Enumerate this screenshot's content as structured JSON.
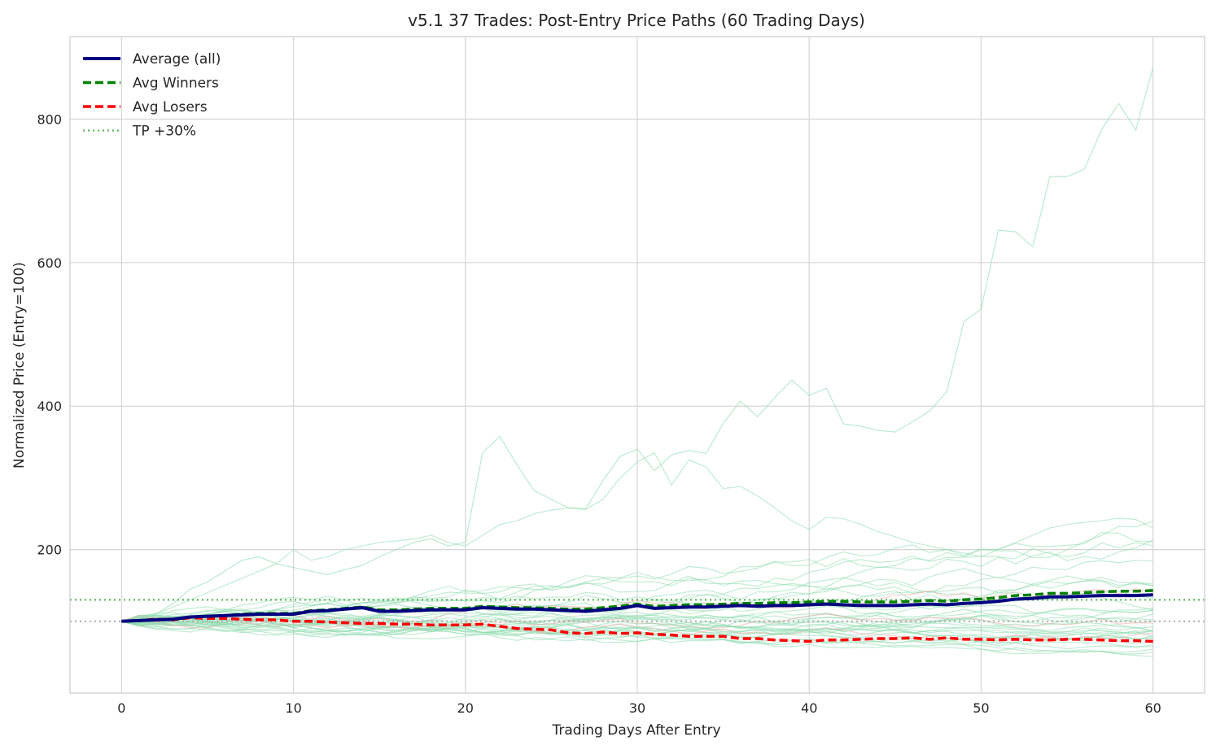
{
  "chart_data": {
    "type": "line",
    "title": "v5.1 37 Trades: Post-Entry Price Paths (60 Trading Days)",
    "xlabel": "Trading Days After Entry",
    "ylabel": "Normalized Price (Entry=100)",
    "xlim": [
      -3,
      63
    ],
    "ylim": [
      0,
      915
    ],
    "x_ticks": [
      0,
      10,
      20,
      30,
      40,
      50,
      60
    ],
    "y_ticks": [
      200,
      400,
      600,
      800
    ],
    "grid": true,
    "legend": {
      "position": "top-left"
    },
    "x": [
      0,
      1,
      2,
      3,
      4,
      5,
      6,
      7,
      8,
      9,
      10,
      11,
      12,
      13,
      14,
      15,
      16,
      17,
      18,
      19,
      20,
      21,
      22,
      23,
      24,
      25,
      26,
      27,
      28,
      29,
      30,
      31,
      32,
      33,
      34,
      35,
      36,
      37,
      38,
      39,
      40,
      41,
      42,
      43,
      44,
      45,
      46,
      47,
      48,
      49,
      50,
      51,
      52,
      53,
      54,
      55,
      56,
      57,
      58,
      59,
      60
    ],
    "series": [
      {
        "name": "Average (all)",
        "color": "#00007f",
        "style": "solid",
        "values": [
          100,
          101,
          102,
          103,
          106,
          107,
          108,
          109,
          110,
          110,
          110,
          114,
          115,
          117,
          119,
          114,
          114,
          115,
          116,
          116,
          116,
          119,
          118,
          117,
          117,
          116,
          115,
          114,
          116,
          118,
          122,
          118,
          119,
          120,
          120,
          121,
          122,
          121,
          122,
          122,
          123,
          124,
          123,
          122,
          122,
          122,
          123,
          124,
          123,
          125,
          126,
          128,
          131,
          132,
          134,
          134,
          135,
          136,
          136,
          136,
          137
        ]
      },
      {
        "name": "Avg Winners",
        "color": "#008000",
        "style": "dashed",
        "values": [
          100,
          101,
          102,
          103,
          106,
          107,
          108,
          110,
          111,
          111,
          111,
          115,
          116,
          118,
          120,
          116,
          116,
          117,
          118,
          118,
          118,
          121,
          120,
          119,
          119,
          118,
          117,
          117,
          119,
          121,
          124,
          121,
          122,
          123,
          123,
          124,
          125,
          125,
          126,
          126,
          127,
          128,
          128,
          127,
          127,
          127,
          128,
          129,
          128,
          130,
          131,
          133,
          136,
          137,
          139,
          139,
          140,
          141,
          142,
          142,
          143
        ]
      },
      {
        "name": "Avg Losers",
        "color": "#ff0000",
        "style": "dashed",
        "values": [
          100,
          101,
          103,
          102,
          105,
          104,
          104,
          103,
          102,
          102,
          100,
          100,
          99,
          98,
          97,
          97,
          96,
          96,
          95,
          95,
          95,
          96,
          93,
          90,
          89,
          88,
          84,
          83,
          85,
          83,
          84,
          82,
          81,
          79,
          79,
          79,
          76,
          76,
          74,
          73,
          72,
          74,
          74,
          75,
          76,
          76,
          77,
          75,
          77,
          75,
          75,
          74,
          75,
          74,
          74,
          75,
          75,
          74,
          73,
          73,
          72
        ]
      }
    ],
    "reference_lines": [
      {
        "name": "TP +30%",
        "y": 130,
        "color": "#5cb85c",
        "style": "dotted"
      },
      {
        "y": 100,
        "color": "#b0b0b0",
        "style": "dotted"
      }
    ]
  }
}
